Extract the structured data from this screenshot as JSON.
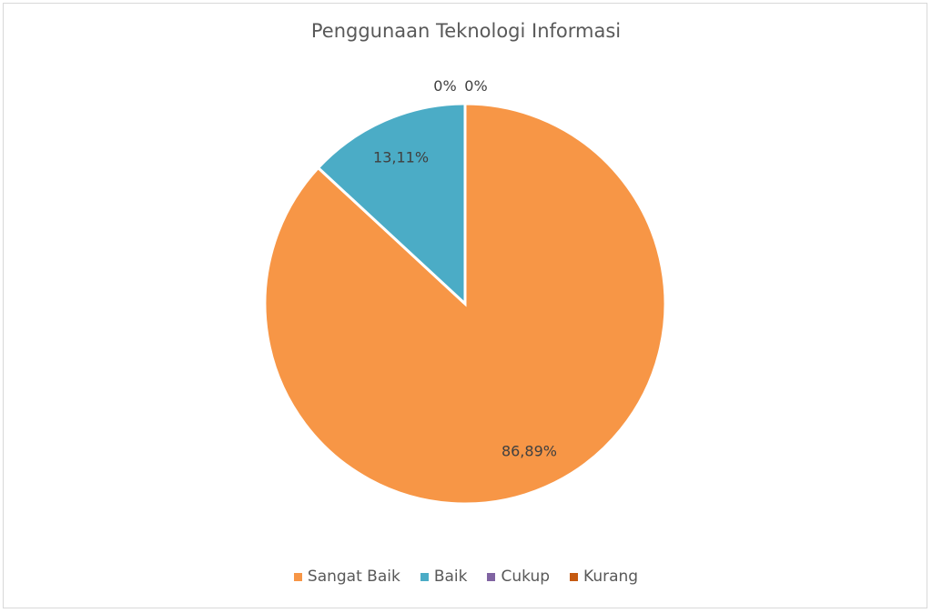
{
  "chart_data": {
    "type": "pie",
    "title": "Penggunaan Teknologi Informasi",
    "categories": [
      "Sangat Baik",
      "Baik",
      "Cukup",
      "Kurang"
    ],
    "values": [
      86.89,
      13.11,
      0,
      0
    ],
    "data_labels": [
      "86,89%",
      "13,11%",
      "0%",
      "0%"
    ],
    "colors": [
      "#F79646",
      "#4BACC6",
      "#8064A2",
      "#C55A11"
    ],
    "legend_position": "bottom"
  }
}
